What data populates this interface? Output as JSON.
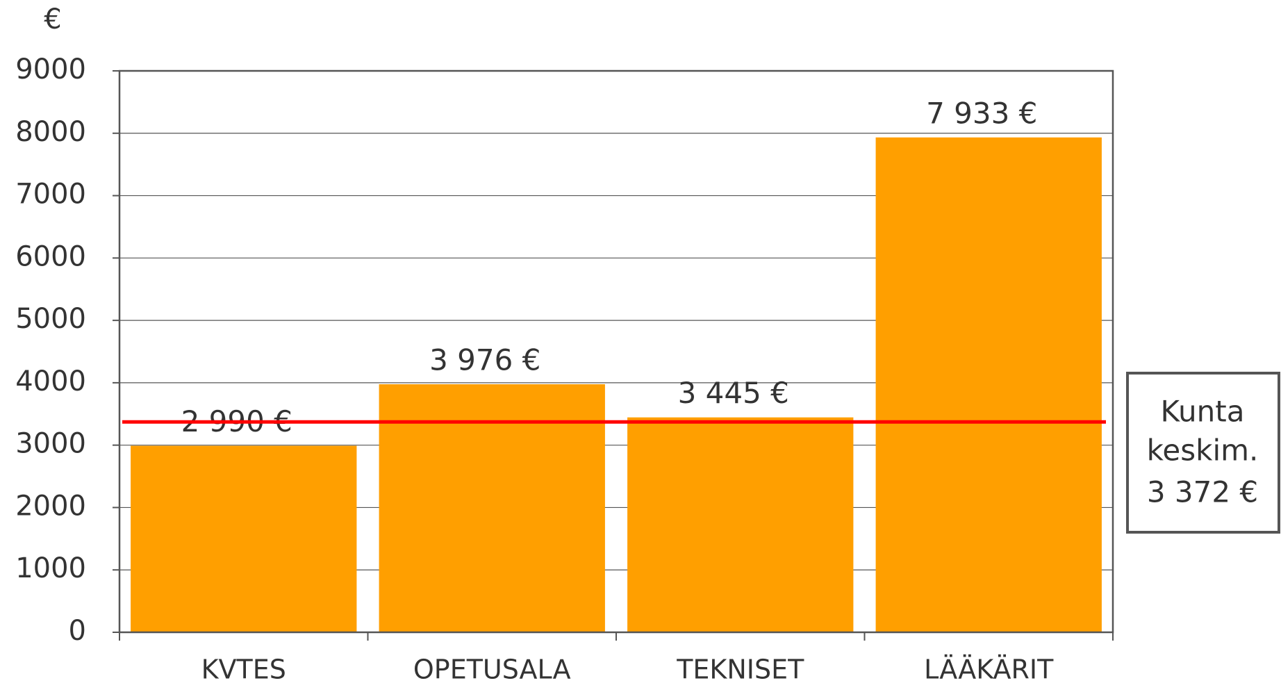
{
  "chart_data": {
    "type": "bar",
    "y_unit": "€",
    "categories": [
      "KVTES",
      "OPETUSALA",
      "TEKNISET",
      "LÄÄKÄRIT"
    ],
    "values": [
      2990,
      3976,
      3445,
      7933
    ],
    "value_labels": [
      "2 990 €",
      "3 976 €",
      "3 445 €",
      "7 933 €"
    ],
    "color": "#ff9f00",
    "ylim": [
      0,
      9000
    ],
    "yticks": [
      0,
      1000,
      2000,
      3000,
      4000,
      5000,
      6000,
      7000,
      8000,
      9000
    ],
    "grid": true,
    "reference_line": {
      "name_lines": [
        "Kunta",
        "keskim."
      ],
      "value": 3372,
      "label": "3 372 €",
      "color": "#ff0000"
    }
  }
}
